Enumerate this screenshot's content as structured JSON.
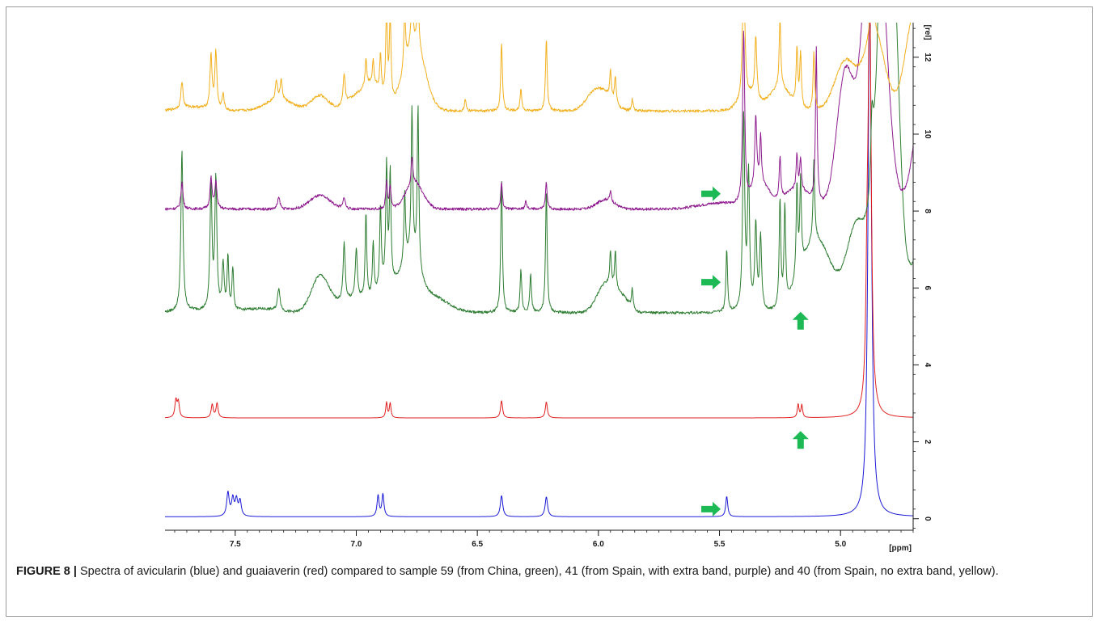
{
  "figure": {
    "label": "FIGURE 8 |",
    "caption": "Spectra of avicularin (blue) and guaiaverin (red) compared to sample 59 (from China, green), 41 (from Spain, with extra band, purple) and 40 (from Spain, no extra band, yellow)."
  },
  "chart_data": {
    "type": "line",
    "title": "",
    "xlabel": "[ppm]",
    "ylabel": "[rel]",
    "xlim": [
      7.79,
      4.7
    ],
    "ylim": [
      -0.3,
      12.9
    ],
    "x_reversed": true,
    "x_ticks": [
      "7.5",
      "7.0",
      "6.5",
      "6.0",
      "5.5",
      "5.0"
    ],
    "x_tick_values": [
      7.5,
      7.0,
      6.5,
      6.0,
      5.5,
      5.0
    ],
    "y_ticks": [
      "0",
      "2",
      "4",
      "6",
      "8",
      "10",
      "12"
    ],
    "y_tick_values": [
      0,
      2,
      4,
      6,
      8,
      10,
      12
    ],
    "grid": false,
    "series": [
      {
        "description": "avicularin",
        "color": "#1a1ad6",
        "baseline": 0.05,
        "peaks": [
          [
            7.53,
            0.62,
            0.006
          ],
          [
            7.51,
            0.45,
            0.006
          ],
          [
            7.495,
            0.42,
            0.006
          ],
          [
            7.48,
            0.4,
            0.006
          ],
          [
            6.91,
            0.55,
            0.005
          ],
          [
            6.89,
            0.58,
            0.005
          ],
          [
            6.4,
            0.55,
            0.006
          ],
          [
            6.215,
            0.52,
            0.006
          ],
          [
            5.47,
            0.53,
            0.005
          ],
          [
            4.885,
            1.6,
            0.008
          ],
          [
            4.88,
            10.0,
            0.007
          ],
          [
            4.875,
            3.5,
            0.008
          ],
          [
            4.47,
            0.1,
            0.01
          ]
        ]
      },
      {
        "description": "guaiaverin",
        "color": "#e02020",
        "baseline": 2.62,
        "peaks": [
          [
            7.745,
            0.45,
            0.005
          ],
          [
            7.735,
            0.4,
            0.005
          ],
          [
            7.595,
            0.35,
            0.005
          ],
          [
            7.575,
            0.38,
            0.005
          ],
          [
            6.875,
            0.4,
            0.004
          ],
          [
            6.86,
            0.38,
            0.004
          ],
          [
            6.4,
            0.45,
            0.005
          ],
          [
            6.215,
            0.42,
            0.005
          ],
          [
            5.175,
            0.35,
            0.004
          ],
          [
            5.16,
            0.33,
            0.004
          ],
          [
            4.89,
            3.0,
            0.006
          ],
          [
            4.88,
            10.0,
            0.006
          ],
          [
            4.875,
            2.0,
            0.008
          ],
          [
            4.47,
            0.05,
            0.01
          ]
        ]
      },
      {
        "description": "sample 59",
        "color": "#2e7d32",
        "baseline": 5.35,
        "waves": [
          [
            7.68,
            0.05,
            0.08
          ],
          [
            7.4,
            0.1,
            0.1
          ],
          [
            7.15,
            0.9,
            0.05
          ],
          [
            7.0,
            0.35,
            0.12
          ],
          [
            6.87,
            0.6,
            0.05
          ],
          [
            6.78,
            1.2,
            0.05
          ],
          [
            6.7,
            0.45,
            0.1
          ],
          [
            5.97,
            0.75,
            0.05
          ],
          [
            5.9,
            0.35,
            0.04
          ],
          [
            5.1,
            1.9,
            0.09
          ],
          [
            4.93,
            2.3,
            0.06
          ],
          [
            4.82,
            8.0,
            0.05
          ],
          [
            4.65,
            1.6,
            0.1
          ],
          [
            4.78,
            5.0,
            0.035
          ]
        ],
        "peaks": [
          [
            7.72,
            4.2,
            0.005
          ],
          [
            7.6,
            3.2,
            0.005
          ],
          [
            7.58,
            3.4,
            0.005
          ],
          [
            7.55,
            1.2,
            0.005
          ],
          [
            7.53,
            1.4,
            0.004
          ],
          [
            7.51,
            1.1,
            0.004
          ],
          [
            7.32,
            0.6,
            0.006
          ],
          [
            7.05,
            1.5,
            0.005
          ],
          [
            7.0,
            1.3,
            0.005
          ],
          [
            6.96,
            2.2,
            0.004
          ],
          [
            6.93,
            1.4,
            0.004
          ],
          [
            6.9,
            2.1,
            0.004
          ],
          [
            6.875,
            3.0,
            0.004
          ],
          [
            6.86,
            2.8,
            0.004
          ],
          [
            6.8,
            1.8,
            0.004
          ],
          [
            6.77,
            3.8,
            0.004
          ],
          [
            6.745,
            4.2,
            0.004
          ],
          [
            6.4,
            3.5,
            0.004
          ],
          [
            6.32,
            1.1,
            0.004
          ],
          [
            6.28,
            1.0,
            0.004
          ],
          [
            6.215,
            3.2,
            0.004
          ],
          [
            5.95,
            0.9,
            0.004
          ],
          [
            5.93,
            1.0,
            0.004
          ],
          [
            5.86,
            0.5,
            0.004
          ],
          [
            5.47,
            1.6,
            0.004
          ],
          [
            5.4,
            5.0,
            0.005
          ],
          [
            5.38,
            3.5,
            0.005
          ],
          [
            5.35,
            2.2,
            0.005
          ],
          [
            5.33,
            1.9,
            0.005
          ],
          [
            5.25,
            2.8,
            0.004
          ],
          [
            5.23,
            2.5,
            0.004
          ],
          [
            5.18,
            2.4,
            0.004
          ],
          [
            5.165,
            2.3,
            0.004
          ],
          [
            5.11,
            2.1,
            0.004
          ],
          [
            4.87,
            1.6,
            0.006
          ],
          [
            4.84,
            2.0,
            0.006
          ],
          [
            4.6,
            1.9,
            0.003
          ],
          [
            4.585,
            1.8,
            0.003
          ],
          [
            4.55,
            0.5,
            0.004
          ]
        ]
      },
      {
        "description": "sample 41",
        "color": "#8e1a8e",
        "baseline": 8.05,
        "waves": [
          [
            7.15,
            0.35,
            0.06
          ],
          [
            6.76,
            0.7,
            0.05
          ],
          [
            5.97,
            0.25,
            0.05
          ],
          [
            5.5,
            0.15,
            0.12
          ],
          [
            5.33,
            0.6,
            0.05
          ],
          [
            5.18,
            0.5,
            0.08
          ],
          [
            4.98,
            3.5,
            0.05
          ],
          [
            4.86,
            9.0,
            0.06
          ],
          [
            4.62,
            6.0,
            0.07
          ],
          [
            4.45,
            0.5,
            0.1
          ]
        ],
        "peaks": [
          [
            7.72,
            0.7,
            0.005
          ],
          [
            7.6,
            0.8,
            0.005
          ],
          [
            7.58,
            0.7,
            0.005
          ],
          [
            7.32,
            0.3,
            0.006
          ],
          [
            7.05,
            0.3,
            0.005
          ],
          [
            6.875,
            0.7,
            0.004
          ],
          [
            6.86,
            0.6,
            0.004
          ],
          [
            6.77,
            0.7,
            0.004
          ],
          [
            6.4,
            0.7,
            0.004
          ],
          [
            6.3,
            0.2,
            0.004
          ],
          [
            6.215,
            0.7,
            0.004
          ],
          [
            5.95,
            0.25,
            0.004
          ],
          [
            5.4,
            4.5,
            0.005
          ],
          [
            5.35,
            1.8,
            0.005
          ],
          [
            5.33,
            1.2,
            0.004
          ],
          [
            5.25,
            1.1,
            0.004
          ],
          [
            5.18,
            0.9,
            0.004
          ],
          [
            5.165,
            0.8,
            0.004
          ],
          [
            5.1,
            4.0,
            0.004
          ],
          [
            4.875,
            5.0,
            0.006
          ],
          [
            4.6,
            3.5,
            0.003
          ],
          [
            4.585,
            3.2,
            0.003
          ]
        ]
      },
      {
        "description": "sample 40",
        "color": "#f2b01e",
        "baseline": 10.6,
        "waves": [
          [
            7.68,
            0.1,
            0.08
          ],
          [
            7.32,
            0.3,
            0.08
          ],
          [
            7.15,
            0.4,
            0.05
          ],
          [
            7.0,
            0.35,
            0.06
          ],
          [
            6.93,
            0.6,
            0.05
          ],
          [
            6.76,
            1.8,
            0.06
          ],
          [
            6.02,
            0.4,
            0.05
          ],
          [
            5.97,
            0.35,
            0.05
          ],
          [
            5.38,
            0.4,
            0.05
          ],
          [
            5.25,
            0.6,
            0.06
          ],
          [
            4.98,
            1.3,
            0.06
          ],
          [
            4.86,
            2.0,
            0.06
          ],
          [
            4.7,
            2.2,
            0.05
          ],
          [
            4.62,
            1.8,
            0.06
          ]
        ],
        "peaks": [
          [
            7.72,
            0.7,
            0.005
          ],
          [
            7.6,
            1.4,
            0.005
          ],
          [
            7.58,
            1.5,
            0.005
          ],
          [
            7.55,
            0.4,
            0.005
          ],
          [
            7.33,
            0.5,
            0.005
          ],
          [
            7.31,
            0.5,
            0.005
          ],
          [
            7.05,
            0.8,
            0.005
          ],
          [
            6.96,
            0.7,
            0.004
          ],
          [
            6.93,
            0.6,
            0.004
          ],
          [
            6.9,
            1.0,
            0.004
          ],
          [
            6.875,
            2.5,
            0.004
          ],
          [
            6.86,
            2.3,
            0.004
          ],
          [
            6.8,
            1.5,
            0.004
          ],
          [
            6.77,
            1.5,
            0.004
          ],
          [
            6.745,
            1.5,
            0.004
          ],
          [
            6.55,
            0.3,
            0.004
          ],
          [
            6.4,
            1.8,
            0.004
          ],
          [
            6.32,
            0.6,
            0.004
          ],
          [
            6.215,
            1.9,
            0.004
          ],
          [
            5.95,
            0.7,
            0.004
          ],
          [
            5.93,
            0.7,
            0.004
          ],
          [
            5.86,
            0.3,
            0.004
          ],
          [
            5.4,
            4.0,
            0.005
          ],
          [
            5.35,
            1.6,
            0.005
          ],
          [
            5.25,
            1.8,
            0.004
          ],
          [
            5.18,
            1.5,
            0.004
          ],
          [
            5.165,
            1.4,
            0.004
          ],
          [
            5.11,
            1.5,
            0.004
          ],
          [
            4.87,
            2.0,
            0.006
          ],
          [
            4.6,
            2.5,
            0.003
          ],
          [
            4.585,
            2.4,
            0.003
          ]
        ]
      }
    ],
    "annotations": [
      {
        "kind": "arrow-right",
        "x": 5.535,
        "y": 8.45,
        "color": "#1db954"
      },
      {
        "kind": "arrow-right",
        "x": 5.535,
        "y": 6.15,
        "color": "#1db954"
      },
      {
        "kind": "arrow-up",
        "x": 5.165,
        "y": 5.15,
        "color": "#1db954"
      },
      {
        "kind": "arrow-up",
        "x": 5.165,
        "y": 2.05,
        "color": "#1db954"
      },
      {
        "kind": "arrow-right",
        "x": 5.535,
        "y": 0.25,
        "color": "#1db954"
      }
    ]
  }
}
